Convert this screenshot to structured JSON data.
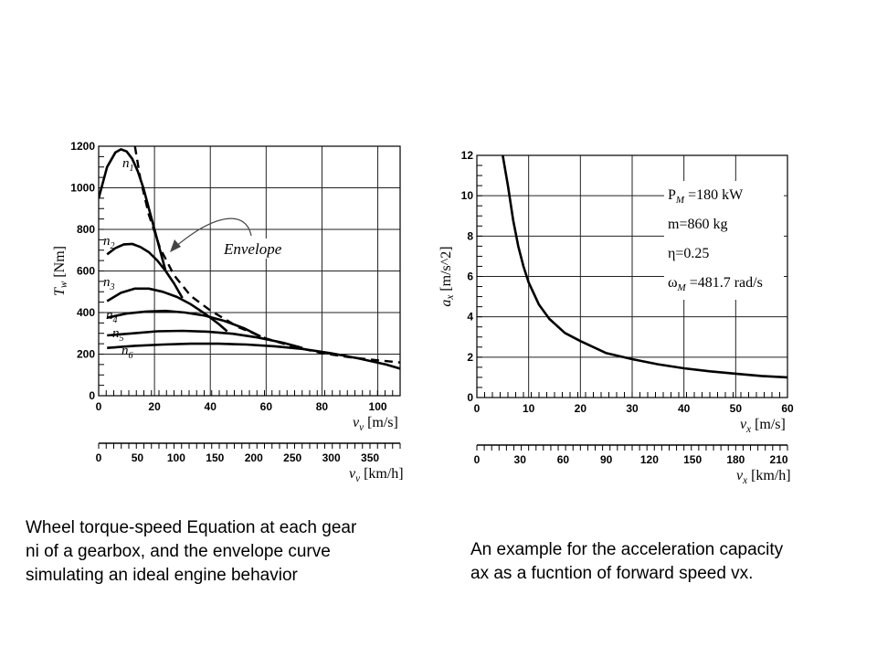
{
  "chart_data": [
    {
      "type": "line",
      "title": "",
      "xlabel": "v_v [m/s]",
      "ylabel": "T_w [Nm]",
      "xlim": [
        0,
        108
      ],
      "ylim": [
        0,
        1200
      ],
      "grid": true,
      "x_ticks": [
        "0",
        "20",
        "40",
        "60",
        "80",
        "100"
      ],
      "y_ticks": [
        "0",
        "200",
        "400",
        "600",
        "800",
        "1000",
        "1200"
      ],
      "secondary_axis": {
        "label": "v_v [km/h]",
        "ticks": [
          "0",
          "50",
          "100",
          "150",
          "200",
          "250",
          "300",
          "350"
        ]
      },
      "series": [
        {
          "name": "n1",
          "style": "solid",
          "x": [
            0,
            3,
            6,
            8,
            10,
            12,
            14,
            16,
            18,
            20,
            22,
            24
          ],
          "y": [
            950,
            1100,
            1170,
            1185,
            1175,
            1140,
            1080,
            1000,
            900,
            800,
            700,
            600
          ]
        },
        {
          "name": "n2",
          "style": "solid",
          "x": [
            3,
            6,
            9,
            12,
            15,
            18,
            21,
            24,
            27,
            30
          ],
          "y": [
            680,
            710,
            728,
            730,
            715,
            690,
            650,
            600,
            540,
            470
          ]
        },
        {
          "name": "n3",
          "style": "solid",
          "x": [
            3,
            8,
            13,
            18,
            23,
            28,
            33,
            38,
            43,
            46
          ],
          "y": [
            455,
            495,
            515,
            515,
            500,
            475,
            440,
            395,
            345,
            310
          ]
        },
        {
          "name": "n4",
          "style": "solid",
          "x": [
            3,
            10,
            17,
            24,
            31,
            38,
            45,
            52,
            58
          ],
          "y": [
            375,
            395,
            405,
            408,
            400,
            385,
            360,
            325,
            285
          ]
        },
        {
          "name": "n5",
          "style": "solid",
          "x": [
            3,
            12,
            21,
            30,
            39,
            48,
            57,
            66,
            73
          ],
          "y": [
            290,
            300,
            310,
            312,
            308,
            298,
            280,
            255,
            230
          ]
        },
        {
          "name": "n6",
          "style": "solid",
          "x": [
            3,
            13,
            23,
            33,
            43,
            53,
            63,
            73,
            83,
            93,
            103,
            108
          ],
          "y": [
            230,
            240,
            246,
            250,
            250,
            246,
            238,
            225,
            205,
            180,
            150,
            130
          ]
        },
        {
          "name": "Envelope",
          "style": "dashed",
          "x": [
            13,
            15,
            18,
            22,
            27,
            33,
            40,
            50,
            60,
            70,
            80,
            90,
            100,
            108
          ],
          "y": [
            1200,
            1040,
            870,
            710,
            580,
            480,
            410,
            330,
            275,
            235,
            205,
            185,
            170,
            160
          ]
        }
      ],
      "annotations": [
        "Envelope"
      ]
    },
    {
      "type": "line",
      "title": "",
      "xlabel": "v_x [m/s]",
      "ylabel": "a_x [m/s^2]",
      "xlim": [
        0,
        60
      ],
      "ylim": [
        0,
        12
      ],
      "grid": true,
      "x_ticks": [
        "0",
        "10",
        "20",
        "30",
        "40",
        "50",
        "60"
      ],
      "y_ticks": [
        "0",
        "2",
        "4",
        "6",
        "8",
        "10",
        "12"
      ],
      "secondary_axis": {
        "label": "v_x [km/h]",
        "ticks": [
          "0",
          "30",
          "60",
          "90",
          "120",
          "150",
          "180",
          "210"
        ]
      },
      "series": [
        {
          "x": [
            5,
            6,
            7,
            8,
            9,
            10,
            12,
            14,
            17,
            20,
            25,
            30,
            35,
            40,
            45,
            50,
            55,
            60
          ],
          "y": [
            12.0,
            10.5,
            8.8,
            7.5,
            6.5,
            5.7,
            4.6,
            3.9,
            3.2,
            2.8,
            2.2,
            1.9,
            1.65,
            1.45,
            1.3,
            1.18,
            1.07,
            1.0
          ]
        }
      ],
      "legend_text": [
        "P_M =180 kW",
        "m=860 kg",
        "η=0.25",
        "ω_M =481.7 rad/s"
      ]
    }
  ],
  "captions": {
    "left": [
      "Wheel torque-speed Equation at each gear",
      "ni of a gearbox, and the envelope curve",
      "simulating an ideal engine behavior"
    ],
    "right": [
      "An example for the acceleration capacity",
      "ax as a fucntion of  forward speed vx."
    ]
  }
}
